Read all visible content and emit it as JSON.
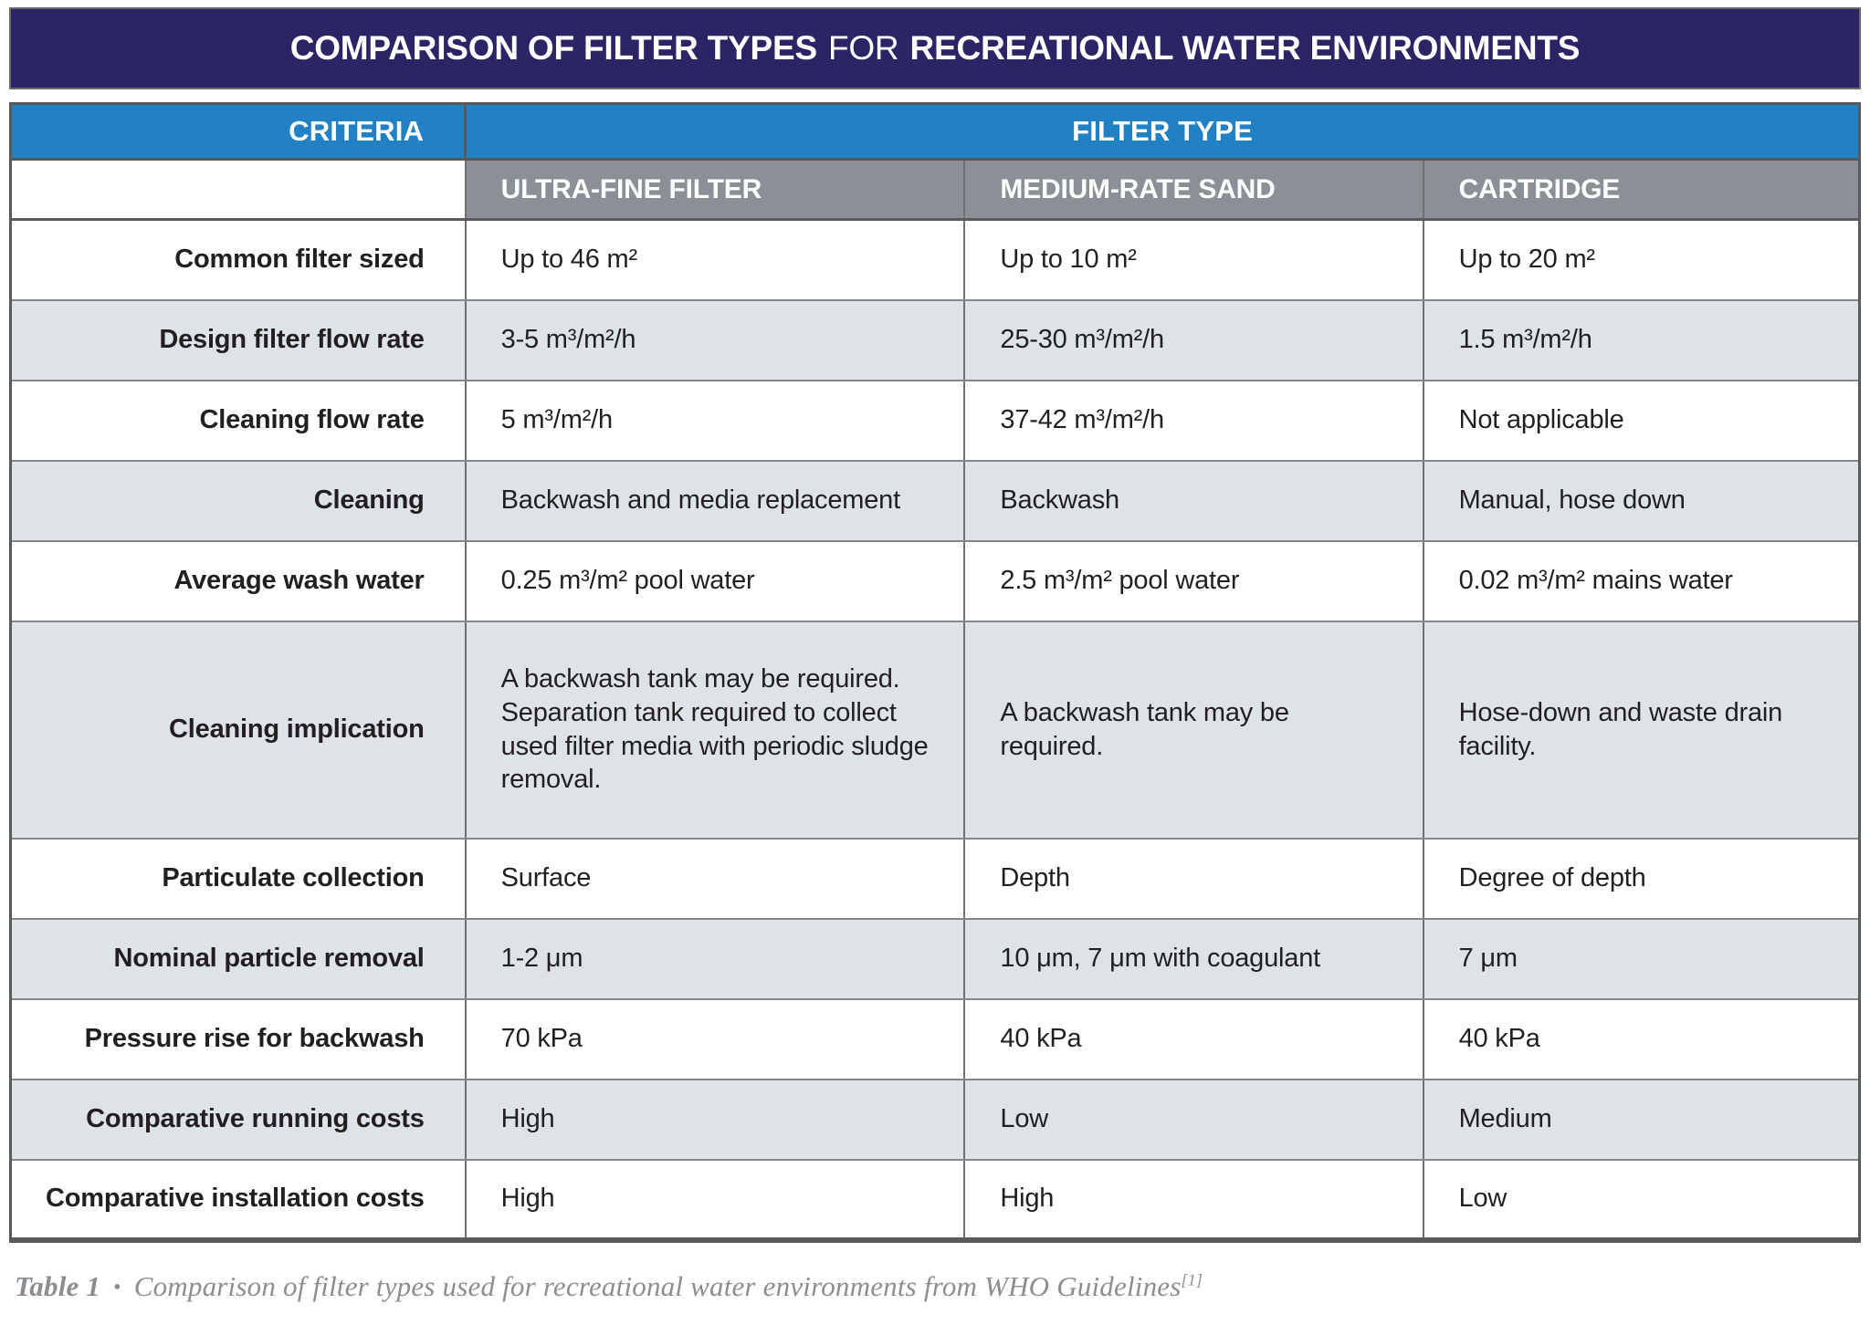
{
  "title": {
    "bold1": "COMPARISON OF FILTER TYPES",
    "regular": "FOR",
    "bold2": "RECREATIONAL WATER ENVIRONMENTS"
  },
  "header": {
    "criteria": "CRITERIA",
    "filter_type": "FILTER TYPE"
  },
  "columns": [
    "ULTRA-FINE FILTER",
    "MEDIUM-RATE SAND",
    "CARTRIDGE"
  ],
  "rows": [
    {
      "label": "Common filter sized",
      "values": [
        "Up to 46 m²",
        "Up to 10 m²",
        "Up to 20 m²"
      ]
    },
    {
      "label": "Design filter flow rate",
      "values": [
        "3-5 m³/m²/h",
        "25-30 m³/m²/h",
        "1.5 m³/m²/h"
      ]
    },
    {
      "label": "Cleaning flow rate",
      "values": [
        "5 m³/m²/h",
        "37-42 m³/m²/h",
        "Not applicable"
      ]
    },
    {
      "label": "Cleaning",
      "values": [
        "Backwash and media replacement",
        "Backwash",
        "Manual, hose down"
      ]
    },
    {
      "label": "Average wash water",
      "values": [
        "0.25 m³/m² pool water",
        "2.5 m³/m² pool water",
        "0.02 m³/m² mains water"
      ]
    },
    {
      "label": "Cleaning implication",
      "values": [
        "A backwash tank may be required. Separation tank required to collect used filter media with periodic sludge removal.",
        "A backwash tank may be required.",
        "Hose-down and waste drain facility."
      ]
    },
    {
      "label": "Particulate collection",
      "values": [
        "Surface",
        "Depth",
        "Degree of depth"
      ]
    },
    {
      "label": "Nominal particle removal",
      "values": [
        "1-2 μm",
        "10 μm, 7 μm with coagulant",
        "7 μm"
      ]
    },
    {
      "label": "Pressure rise for backwash",
      "values": [
        "70 kPa",
        "40 kPa",
        "40 kPa"
      ]
    },
    {
      "label": "Comparative running costs",
      "values": [
        "High",
        "Low",
        "Medium"
      ]
    },
    {
      "label": "Comparative installation costs",
      "values": [
        "High",
        "High",
        "Low"
      ]
    }
  ],
  "caption": {
    "table_label": "Table 1",
    "bullet": "•",
    "text": "Comparison of filter types used for recreational water environments from WHO Guidelines",
    "reference": "[1]"
  },
  "colors": {
    "title_bar": "#2b2566",
    "header_blue": "#2280c4",
    "subheader_gray": "#8a9096",
    "zebra_row": "#dde3e7",
    "border_dark": "#58595b",
    "caption_gray": "#8b8e91"
  }
}
